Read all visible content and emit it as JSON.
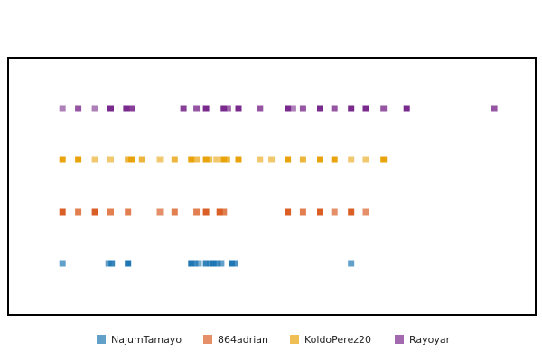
{
  "chart_data": {
    "type": "scatter",
    "title": "",
    "xlabel": "",
    "ylabel": "",
    "grid": false,
    "x_axis_visible": false,
    "y_axis_visible": false,
    "legend_position": "bottom",
    "xlim": [
      0,
      100
    ],
    "series": [
      {
        "name": "NajumTamayo",
        "color": "#1f77b4",
        "points": [
          {
            "x": 10.2,
            "opacity": 0.7
          },
          {
            "x": 19.0,
            "opacity": 0.7
          },
          {
            "x": 19.6,
            "opacity": 0.9
          },
          {
            "x": 22.7,
            "opacity": 1.0
          },
          {
            "x": 34.8,
            "opacity": 1.0
          },
          {
            "x": 35.5,
            "opacity": 0.8
          },
          {
            "x": 36.2,
            "opacity": 0.6
          },
          {
            "x": 37.6,
            "opacity": 0.9
          },
          {
            "x": 38.3,
            "opacity": 0.6
          },
          {
            "x": 39.0,
            "opacity": 1.0
          },
          {
            "x": 39.8,
            "opacity": 0.8
          },
          {
            "x": 40.5,
            "opacity": 0.7
          },
          {
            "x": 42.5,
            "opacity": 1.0
          },
          {
            "x": 43.1,
            "opacity": 0.8
          },
          {
            "x": 65.3,
            "opacity": 0.7
          }
        ]
      },
      {
        "name": "864adrian",
        "color": "#d95f26",
        "points": [
          {
            "x": 10.2,
            "opacity": 1.0
          },
          {
            "x": 13.2,
            "opacity": 0.8
          },
          {
            "x": 16.4,
            "opacity": 1.0
          },
          {
            "x": 19.4,
            "opacity": 0.8
          },
          {
            "x": 22.7,
            "opacity": 0.8
          },
          {
            "x": 28.8,
            "opacity": 0.7
          },
          {
            "x": 31.6,
            "opacity": 0.8
          },
          {
            "x": 35.8,
            "opacity": 0.8
          },
          {
            "x": 37.6,
            "opacity": 1.0
          },
          {
            "x": 40.2,
            "opacity": 1.0
          },
          {
            "x": 41.0,
            "opacity": 0.8
          },
          {
            "x": 53.2,
            "opacity": 1.0
          },
          {
            "x": 56.1,
            "opacity": 0.8
          },
          {
            "x": 59.4,
            "opacity": 1.0
          },
          {
            "x": 62.1,
            "opacity": 0.7
          },
          {
            "x": 65.3,
            "opacity": 1.0
          },
          {
            "x": 68.1,
            "opacity": 0.7
          }
        ]
      },
      {
        "name": "KoldoPerez20",
        "color": "#e8a30b",
        "points": [
          {
            "x": 10.2,
            "opacity": 1.0
          },
          {
            "x": 13.2,
            "opacity": 1.0
          },
          {
            "x": 16.4,
            "opacity": 0.6
          },
          {
            "x": 19.4,
            "opacity": 0.6
          },
          {
            "x": 22.7,
            "opacity": 0.8
          },
          {
            "x": 23.4,
            "opacity": 1.0
          },
          {
            "x": 25.4,
            "opacity": 0.8
          },
          {
            "x": 28.8,
            "opacity": 0.6
          },
          {
            "x": 31.6,
            "opacity": 0.8
          },
          {
            "x": 34.8,
            "opacity": 1.0
          },
          {
            "x": 35.8,
            "opacity": 0.7
          },
          {
            "x": 37.6,
            "opacity": 1.0
          },
          {
            "x": 38.2,
            "opacity": 0.7
          },
          {
            "x": 39.6,
            "opacity": 0.6
          },
          {
            "x": 41.0,
            "opacity": 1.0
          },
          {
            "x": 41.6,
            "opacity": 0.8
          },
          {
            "x": 43.8,
            "opacity": 1.0
          },
          {
            "x": 47.9,
            "opacity": 0.6
          },
          {
            "x": 50.1,
            "opacity": 0.6
          },
          {
            "x": 53.2,
            "opacity": 1.0
          },
          {
            "x": 56.1,
            "opacity": 0.8
          },
          {
            "x": 59.4,
            "opacity": 1.0
          },
          {
            "x": 62.1,
            "opacity": 1.0
          },
          {
            "x": 65.3,
            "opacity": 0.6
          },
          {
            "x": 68.1,
            "opacity": 0.6
          },
          {
            "x": 71.5,
            "opacity": 1.0
          }
        ]
      },
      {
        "name": "Rayoyar",
        "color": "#7a2a8c",
        "points": [
          {
            "x": 10.2,
            "opacity": 0.6
          },
          {
            "x": 13.2,
            "opacity": 0.8
          },
          {
            "x": 16.4,
            "opacity": 0.6
          },
          {
            "x": 19.4,
            "opacity": 1.0
          },
          {
            "x": 22.4,
            "opacity": 1.0
          },
          {
            "x": 23.4,
            "opacity": 0.9
          },
          {
            "x": 33.3,
            "opacity": 0.9
          },
          {
            "x": 35.8,
            "opacity": 0.8
          },
          {
            "x": 37.6,
            "opacity": 1.0
          },
          {
            "x": 41.0,
            "opacity": 1.0
          },
          {
            "x": 41.8,
            "opacity": 0.7
          },
          {
            "x": 43.8,
            "opacity": 1.0
          },
          {
            "x": 47.9,
            "opacity": 0.8
          },
          {
            "x": 53.2,
            "opacity": 1.0
          },
          {
            "x": 54.2,
            "opacity": 0.6
          },
          {
            "x": 56.1,
            "opacity": 0.8
          },
          {
            "x": 59.4,
            "opacity": 1.0
          },
          {
            "x": 62.1,
            "opacity": 0.8
          },
          {
            "x": 65.3,
            "opacity": 1.0
          },
          {
            "x": 68.1,
            "opacity": 1.0
          },
          {
            "x": 71.5,
            "opacity": 0.8
          },
          {
            "x": 75.9,
            "opacity": 1.0
          },
          {
            "x": 92.6,
            "opacity": 0.8
          }
        ]
      }
    ]
  }
}
